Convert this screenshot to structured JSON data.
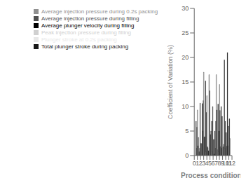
{
  "chart_data": {
    "type": "bar",
    "xlabel": "Process conditions",
    "ylabel": "Coefficient of Variation (%)",
    "x": [
      1,
      2,
      3,
      4,
      5,
      6,
      7,
      8,
      9,
      10,
      11
    ],
    "series": [
      {
        "name": "Average plunger velocity during filling",
        "color": "#000000",
        "values": [
          7.0,
          0.8,
          10.6,
          15.2,
          1.0,
          7.0,
          5.0,
          10.5,
          10.0,
          19.5,
          21.0
        ]
      },
      {
        "name": "Peak injection pressure during filling",
        "color": "#d0d0d0",
        "values": [
          1.5,
          1.5,
          5.0,
          0.8,
          16.5,
          0.8,
          1.5,
          0.8,
          1.5,
          1.5,
          2.0
        ]
      },
      {
        "name": "Average injection pressure during filling",
        "color": "#505050",
        "values": [
          5.8,
          10.7,
          11.2,
          8.8,
          13.2,
          10.0,
          7.0,
          5.0,
          8.0,
          7.0,
          6.0
        ]
      },
      {
        "name": "Plunger stroke at 0.2s packing",
        "color": "#e8e8e8",
        "values": [
          9.3,
          0.0,
          17.0,
          12.2,
          0.0,
          0.0,
          16.5,
          14.5,
          0.0,
          0.0,
          0.0
        ]
      },
      {
        "name": "Total plunger stroke during packing",
        "color": "#181818",
        "values": [
          2.0,
          2.5,
          3.8,
          1.8,
          4.3,
          3.3,
          9.3,
          9.2,
          1.8,
          4.7,
          7.5
        ]
      },
      {
        "name": "Average injection pressure during 0.2s packing",
        "color": "#909090",
        "values": [
          3.7,
          2.4,
          3.8,
          1.6,
          5.0,
          0.3,
          1.2,
          1.8,
          2.3,
          1.9,
          3.5
        ]
      }
    ],
    "xlim": [
      0,
      12
    ],
    "xticks": [
      0,
      1,
      2,
      3,
      4,
      5,
      6,
      7,
      8,
      9,
      10,
      11,
      12
    ],
    "ylim": [
      0,
      30
    ],
    "yticks": [
      0,
      5,
      10,
      15,
      20,
      25,
      30
    ],
    "grid": false,
    "legend": "upper left"
  }
}
